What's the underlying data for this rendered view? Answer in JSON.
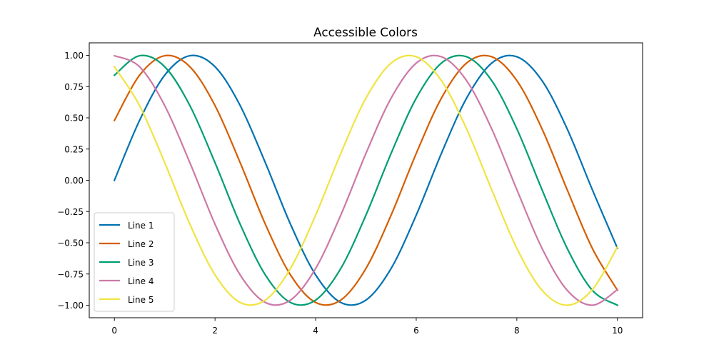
{
  "chart_data": {
    "type": "line",
    "title": "Accessible Colors",
    "xlabel": "",
    "ylabel": "",
    "xlim": [
      -0.5,
      10.5
    ],
    "ylim": [
      -1.1,
      1.1
    ],
    "grid": false,
    "legend_position": "lower-left",
    "x_ticks": [
      0,
      2,
      4,
      6,
      8,
      10
    ],
    "x_tick_labels": [
      "0",
      "2",
      "4",
      "6",
      "8",
      "10"
    ],
    "y_ticks": [
      -1.0,
      -0.75,
      -0.5,
      -0.25,
      0.0,
      0.25,
      0.5,
      0.75,
      1.0
    ],
    "y_tick_labels": [
      "−1.00",
      "−0.75",
      "−0.50",
      "−0.25",
      "0.00",
      "0.25",
      "0.50",
      "0.75",
      "1.00"
    ],
    "x": [
      0,
      0.5,
      1,
      1.5,
      2,
      2.5,
      3,
      3.5,
      4,
      4.5,
      5,
      5.5,
      6,
      6.5,
      7,
      7.5,
      8,
      8.5,
      9,
      9.5,
      10
    ],
    "series": [
      {
        "name": "Line 1",
        "color": "#0072b2",
        "values": [
          0.0,
          0.479,
          0.841,
          0.997,
          0.909,
          0.598,
          0.141,
          -0.351,
          -0.757,
          -0.978,
          -0.959,
          -0.706,
          -0.279,
          0.215,
          0.657,
          0.938,
          0.989,
          0.798,
          0.412,
          -0.075,
          -0.544
        ]
      },
      {
        "name": "Line 2",
        "color": "#d55e00",
        "values": [
          0.479,
          0.841,
          0.997,
          0.909,
          0.598,
          0.141,
          -0.351,
          -0.757,
          -0.978,
          -0.959,
          -0.706,
          -0.279,
          0.215,
          0.657,
          0.938,
          0.989,
          0.798,
          0.412,
          -0.075,
          -0.544,
          -0.88
        ]
      },
      {
        "name": "Line 3",
        "color": "#009e73",
        "values": [
          0.841,
          0.997,
          0.909,
          0.598,
          0.141,
          -0.351,
          -0.757,
          -0.978,
          -0.959,
          -0.706,
          -0.279,
          0.215,
          0.657,
          0.938,
          0.989,
          0.798,
          0.412,
          -0.075,
          -0.544,
          -0.88,
          -1.0
        ]
      },
      {
        "name": "Line 4",
        "color": "#cc79a7",
        "values": [
          0.997,
          0.909,
          0.598,
          0.141,
          -0.351,
          -0.757,
          -0.978,
          -0.959,
          -0.706,
          -0.279,
          0.215,
          0.657,
          0.938,
          0.989,
          0.798,
          0.412,
          -0.075,
          -0.544,
          -0.88,
          -1.0,
          -0.875
        ]
      },
      {
        "name": "Line 5",
        "color": "#f0e442",
        "values": [
          0.909,
          0.598,
          0.141,
          -0.351,
          -0.757,
          -0.978,
          -0.959,
          -0.706,
          -0.279,
          0.215,
          0.657,
          0.938,
          0.989,
          0.798,
          0.412,
          -0.075,
          -0.544,
          -0.88,
          -1.0,
          -0.875,
          -0.534
        ]
      }
    ]
  }
}
